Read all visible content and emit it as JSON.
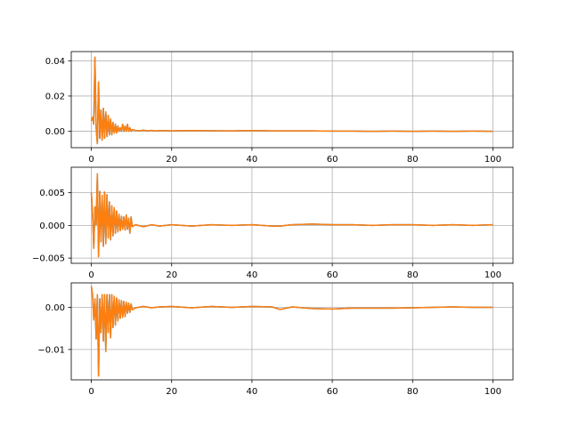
{
  "chart_data": [
    {
      "type": "line",
      "title": "",
      "xlabel": "",
      "ylabel": "",
      "grid": true,
      "xlim": [
        -5,
        105
      ],
      "ylim": [
        -0.0093,
        0.0452
      ],
      "xticks": [
        0,
        20,
        40,
        60,
        80,
        100
      ],
      "xtick_labels": [
        "0",
        "20",
        "40",
        "60",
        "80",
        "100"
      ],
      "yticks": [
        0.0,
        0.02,
        0.04
      ],
      "ytick_labels": [
        "0.00",
        "0.02",
        "0.04"
      ],
      "series": [
        {
          "color": "#1f77b4",
          "x": [
            0,
            0.3,
            0.6,
            0.9,
            1.2,
            1.5,
            1.8,
            2.1,
            2.4,
            2.7,
            3.0,
            3.3,
            3.6,
            3.9,
            4.2,
            4.5,
            4.8,
            5.1,
            5.4,
            5.7,
            6.0,
            6.3,
            6.6,
            6.9,
            7.2,
            7.5,
            7.8,
            8.1,
            8.4,
            8.7,
            9.0,
            9.3,
            9.6,
            9.9,
            10.2,
            11,
            12,
            13,
            14,
            15,
            16,
            18,
            20,
            25,
            30,
            35,
            40,
            45,
            50,
            55,
            60,
            65,
            70,
            75,
            80,
            85,
            90,
            95,
            100
          ],
          "y": [
            0.006,
            0.008,
            0.004,
            0.042,
            0.002,
            -0.007,
            0.028,
            -0.004,
            0.012,
            -0.005,
            0.013,
            -0.004,
            0.011,
            -0.003,
            0.009,
            -0.002,
            0.007,
            -0.002,
            0.005,
            -0.001,
            0.004,
            -0.001,
            0.003,
            0.0,
            0.002,
            0.0,
            0.004,
            0.0,
            0.003,
            0.0,
            0.004,
            0.0,
            0.002,
            0.0,
            0.001,
            0.0005,
            0.0003,
            0.0006,
            0.0002,
            0.0005,
            0.0002,
            0.0004,
            0.0002,
            0.0004,
            0.0003,
            0.0002,
            0.0004,
            0.0002,
            0.0002,
            0.0002,
            0.0001,
            0.0001,
            0.0,
            0.0001,
            0.0,
            0.0001,
            0.0,
            0.0001,
            0.0
          ]
        },
        {
          "color": "#ff7f0e",
          "x": [
            0,
            0.3,
            0.6,
            0.9,
            1.2,
            1.5,
            1.8,
            2.1,
            2.4,
            2.7,
            3.0,
            3.3,
            3.6,
            3.9,
            4.2,
            4.5,
            4.8,
            5.1,
            5.4,
            5.7,
            6.0,
            6.3,
            6.6,
            6.9,
            7.2,
            7.5,
            7.8,
            8.1,
            8.4,
            8.7,
            9.0,
            9.3,
            9.6,
            9.9,
            10.2,
            11,
            12,
            13,
            14,
            15,
            16,
            18,
            20,
            25,
            30,
            35,
            40,
            45,
            50,
            55,
            60,
            65,
            70,
            75,
            80,
            85,
            90,
            95,
            100
          ],
          "y": [
            0.006,
            0.008,
            0.004,
            0.042,
            0.002,
            -0.007,
            0.028,
            -0.004,
            0.012,
            -0.005,
            0.013,
            -0.004,
            0.011,
            -0.003,
            0.009,
            -0.002,
            0.007,
            -0.002,
            0.005,
            -0.001,
            0.004,
            -0.001,
            0.003,
            0.0,
            0.002,
            0.0,
            0.004,
            0.0,
            0.003,
            0.0,
            0.004,
            0.0,
            0.002,
            0.0,
            0.001,
            0.0005,
            0.0003,
            0.0006,
            0.0002,
            0.0005,
            0.0002,
            0.0004,
            0.0002,
            0.0004,
            0.0003,
            0.0002,
            0.0004,
            0.0002,
            0.0002,
            0.0002,
            0.0001,
            0.0001,
            0.0,
            0.0001,
            0.0,
            0.0001,
            0.0,
            0.0001,
            0.0
          ]
        }
      ]
    },
    {
      "type": "line",
      "title": "",
      "xlabel": "",
      "ylabel": "",
      "grid": true,
      "xlim": [
        -5,
        105
      ],
      "ylim": [
        -0.0058,
        0.0089
      ],
      "xticks": [
        0,
        20,
        40,
        60,
        80,
        100
      ],
      "xtick_labels": [
        "0",
        "20",
        "40",
        "60",
        "80",
        "100"
      ],
      "yticks": [
        -0.005,
        0.0,
        0.005
      ],
      "ytick_labels": [
        "−0.005",
        "0.000",
        "0.005"
      ],
      "series": [
        {
          "color": "#1f77b4",
          "x": [
            0,
            0.3,
            0.6,
            0.9,
            1.2,
            1.5,
            1.8,
            2.1,
            2.4,
            2.7,
            3.0,
            3.3,
            3.6,
            3.9,
            4.2,
            4.5,
            4.8,
            5.1,
            5.4,
            5.7,
            6.0,
            6.3,
            6.6,
            6.9,
            7.2,
            7.5,
            7.8,
            8.1,
            8.4,
            8.7,
            9.0,
            9.3,
            9.6,
            9.9,
            10.2,
            11,
            13,
            15,
            17,
            20,
            25,
            30,
            35,
            40,
            45,
            47,
            50,
            55,
            60,
            65,
            70,
            75,
            80,
            85,
            90,
            95,
            100
          ],
          "y": [
            0.005,
            0.0018,
            -0.0035,
            0.0028,
            0.0001,
            0.0079,
            -0.0048,
            0.0052,
            -0.0025,
            0.0046,
            -0.0032,
            0.0051,
            -0.0028,
            0.0047,
            -0.0019,
            0.0036,
            -0.0022,
            0.003,
            -0.0016,
            0.0027,
            -0.0012,
            0.0022,
            -0.001,
            0.0017,
            -0.0008,
            0.0014,
            -0.0006,
            0.0013,
            -0.0007,
            0.0016,
            -0.0006,
            0.0011,
            -0.0012,
            0.0013,
            -0.0002,
            0.0001,
            -0.0002,
            0.0001,
            -0.0001,
            0.0001,
            -0.0001,
            0.0001,
            0.0,
            0.0001,
            -0.0001,
            -0.0001,
            0.0001,
            0.0002,
            0.0001,
            0.0001,
            0.0,
            0.0001,
            0.0001,
            0.0,
            0.0001,
            0.0,
            0.0001
          ]
        },
        {
          "color": "#ff7f0e",
          "x": [
            0,
            0.3,
            0.6,
            0.9,
            1.2,
            1.5,
            1.8,
            2.1,
            2.4,
            2.7,
            3.0,
            3.3,
            3.6,
            3.9,
            4.2,
            4.5,
            4.8,
            5.1,
            5.4,
            5.7,
            6.0,
            6.3,
            6.6,
            6.9,
            7.2,
            7.5,
            7.8,
            8.1,
            8.4,
            8.7,
            9.0,
            9.3,
            9.6,
            9.9,
            10.2,
            11,
            13,
            15,
            17,
            20,
            25,
            30,
            35,
            40,
            45,
            47,
            50,
            55,
            60,
            65,
            70,
            75,
            80,
            85,
            90,
            95,
            100
          ],
          "y": [
            0.005,
            0.0018,
            -0.0035,
            0.0028,
            0.0001,
            0.0079,
            -0.0048,
            0.0052,
            -0.0025,
            0.0046,
            -0.0032,
            0.0051,
            -0.0028,
            0.0047,
            -0.0019,
            0.0036,
            -0.0022,
            0.003,
            -0.0016,
            0.0027,
            -0.0012,
            0.0022,
            -0.001,
            0.0017,
            -0.0008,
            0.0014,
            -0.0006,
            0.0013,
            -0.0007,
            0.0016,
            -0.0006,
            0.0011,
            -0.0012,
            0.0013,
            -0.0002,
            0.0001,
            -0.0002,
            0.0001,
            -0.0001,
            0.0001,
            -0.0001,
            0.0001,
            0.0,
            0.0001,
            -0.0001,
            -0.0001,
            0.0001,
            0.0002,
            0.0001,
            0.0001,
            0.0,
            0.0001,
            0.0001,
            0.0,
            0.0001,
            0.0,
            0.0001
          ]
        }
      ]
    },
    {
      "type": "line",
      "title": "",
      "xlabel": "",
      "ylabel": "",
      "grid": true,
      "xlim": [
        -5,
        105
      ],
      "ylim": [
        -0.0172,
        0.0058
      ],
      "xticks": [
        0,
        20,
        40,
        60,
        80,
        100
      ],
      "xtick_labels": [
        "0",
        "20",
        "40",
        "60",
        "80",
        "100"
      ],
      "yticks": [
        -0.01,
        0.0
      ],
      "ytick_labels": [
        "−0.01",
        "0.00"
      ],
      "series": [
        {
          "color": "#1f77b4",
          "x": [
            0,
            0.3,
            0.6,
            0.9,
            1.2,
            1.5,
            1.8,
            2.1,
            2.4,
            2.7,
            3.0,
            3.3,
            3.6,
            3.9,
            4.2,
            4.5,
            4.8,
            5.1,
            5.4,
            5.7,
            6.0,
            6.3,
            6.6,
            6.9,
            7.2,
            7.5,
            7.8,
            8.1,
            8.4,
            8.7,
            9.0,
            9.3,
            9.6,
            9.9,
            10.2,
            11,
            13,
            15,
            17,
            20,
            25,
            30,
            35,
            40,
            45,
            47,
            50,
            55,
            60,
            65,
            70,
            75,
            80,
            85,
            90,
            95,
            100
          ],
          "y": [
            0.005,
            0.003,
            -0.003,
            0.002,
            -0.0075,
            0.003,
            -0.0163,
            0.002,
            -0.006,
            0.003,
            -0.008,
            0.003,
            -0.0105,
            0.003,
            -0.006,
            0.003,
            -0.0072,
            0.003,
            -0.0048,
            0.0026,
            -0.0042,
            0.0022,
            -0.0032,
            0.0018,
            -0.0026,
            0.0016,
            -0.0024,
            0.0014,
            -0.0022,
            0.0012,
            -0.0014,
            0.001,
            -0.0012,
            0.0008,
            -0.0006,
            -0.0001,
            0.0002,
            -0.0001,
            0.0001,
            0.0002,
            -0.0001,
            0.0002,
            0.0,
            0.0002,
            0.0001,
            -0.0005,
            0.0001,
            -0.0003,
            -0.0004,
            -0.0002,
            -0.0002,
            -0.0002,
            -0.0001,
            0.0,
            0.0001,
            0.0,
            0.0
          ]
        },
        {
          "color": "#ff7f0e",
          "x": [
            0,
            0.3,
            0.6,
            0.9,
            1.2,
            1.5,
            1.8,
            2.1,
            2.4,
            2.7,
            3.0,
            3.3,
            3.6,
            3.9,
            4.2,
            4.5,
            4.8,
            5.1,
            5.4,
            5.7,
            6.0,
            6.3,
            6.6,
            6.9,
            7.2,
            7.5,
            7.8,
            8.1,
            8.4,
            8.7,
            9.0,
            9.3,
            9.6,
            9.9,
            10.2,
            11,
            13,
            15,
            17,
            20,
            25,
            30,
            35,
            40,
            45,
            47,
            50,
            55,
            60,
            65,
            70,
            75,
            80,
            85,
            90,
            95,
            100
          ],
          "y": [
            0.005,
            0.003,
            -0.003,
            0.002,
            -0.0075,
            0.003,
            -0.0163,
            0.002,
            -0.006,
            0.003,
            -0.008,
            0.003,
            -0.0105,
            0.003,
            -0.006,
            0.003,
            -0.0072,
            0.003,
            -0.0048,
            0.0026,
            -0.0042,
            0.0022,
            -0.0032,
            0.0018,
            -0.0026,
            0.0016,
            -0.0024,
            0.0014,
            -0.0022,
            0.0012,
            -0.0014,
            0.001,
            -0.0012,
            0.0008,
            -0.0006,
            -0.0001,
            0.0002,
            -0.0001,
            0.0001,
            0.0002,
            -0.0001,
            0.0002,
            0.0,
            0.0002,
            0.0001,
            -0.0005,
            0.0001,
            -0.0003,
            -0.0004,
            -0.0002,
            -0.0002,
            -0.0002,
            -0.0001,
            0.0,
            0.0001,
            0.0,
            0.0
          ]
        }
      ]
    }
  ]
}
